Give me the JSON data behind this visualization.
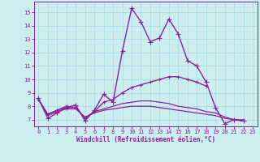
{
  "background_color": "#cceef0",
  "grid_color": "#aadddd",
  "line_color": "#882299",
  "marker_color": "#882299",
  "xlabel": "Windchill (Refroidissement éolien,°C)",
  "tick_color": "#882299",
  "xlim": [
    -0.5,
    23.5
  ],
  "ylim": [
    6.5,
    15.8
  ],
  "yticks": [
    7,
    8,
    9,
    10,
    11,
    12,
    13,
    14,
    15
  ],
  "xticks": [
    0,
    1,
    2,
    3,
    4,
    5,
    6,
    7,
    8,
    9,
    10,
    11,
    12,
    13,
    14,
    15,
    16,
    17,
    18,
    19,
    20,
    21,
    22,
    23
  ],
  "series": [
    {
      "x": [
        0,
        1,
        2,
        3,
        4,
        5,
        6,
        7,
        8,
        9,
        10,
        11,
        12,
        13,
        14,
        15,
        16,
        17,
        18,
        19,
        20,
        21,
        22
      ],
      "y": [
        8.6,
        7.1,
        7.5,
        7.9,
        8.1,
        6.9,
        7.7,
        8.9,
        8.3,
        12.1,
        15.3,
        14.3,
        12.8,
        13.1,
        14.5,
        13.4,
        11.4,
        11.0,
        9.8,
        7.9,
        6.7,
        7.0,
        6.9
      ],
      "marker": "+",
      "lw": 1.0,
      "ms": 4
    },
    {
      "x": [
        0,
        1,
        2,
        3,
        4,
        5,
        6,
        7,
        8,
        9,
        10,
        11,
        12,
        13,
        14,
        15,
        16,
        17,
        18,
        19,
        20,
        21,
        22
      ],
      "y": [
        8.5,
        7.4,
        7.7,
        8.0,
        7.9,
        7.1,
        7.6,
        8.3,
        8.5,
        9.0,
        9.4,
        9.6,
        9.8,
        10.0,
        10.2,
        10.2,
        10.0,
        9.8,
        9.5,
        null,
        null,
        null,
        null
      ],
      "marker": "+",
      "lw": 1.0,
      "ms": 3
    },
    {
      "x": [
        0,
        1,
        2,
        3,
        4,
        5,
        6,
        7,
        8,
        9,
        10,
        11,
        12,
        13,
        14,
        15,
        16,
        17,
        18,
        19,
        20,
        21,
        22
      ],
      "y": [
        8.5,
        7.3,
        7.6,
        7.8,
        7.8,
        7.2,
        7.5,
        7.7,
        7.8,
        7.9,
        8.0,
        8.0,
        8.0,
        7.9,
        7.8,
        7.7,
        7.6,
        7.5,
        7.4,
        7.3,
        7.1,
        7.0,
        6.9
      ],
      "marker": null,
      "lw": 0.9,
      "ms": 0
    },
    {
      "x": [
        0,
        1,
        2,
        3,
        4,
        5,
        6,
        7,
        8,
        9,
        10,
        11,
        12,
        13,
        14,
        15,
        16,
        17,
        18,
        19,
        20,
        21,
        22
      ],
      "y": [
        8.5,
        7.4,
        7.7,
        7.9,
        7.9,
        7.1,
        7.6,
        7.8,
        8.0,
        8.2,
        8.3,
        8.4,
        8.4,
        8.3,
        8.2,
        8.0,
        7.9,
        7.8,
        7.6,
        7.5,
        7.2,
        7.0,
        7.0
      ],
      "marker": null,
      "lw": 0.9,
      "ms": 0
    }
  ]
}
